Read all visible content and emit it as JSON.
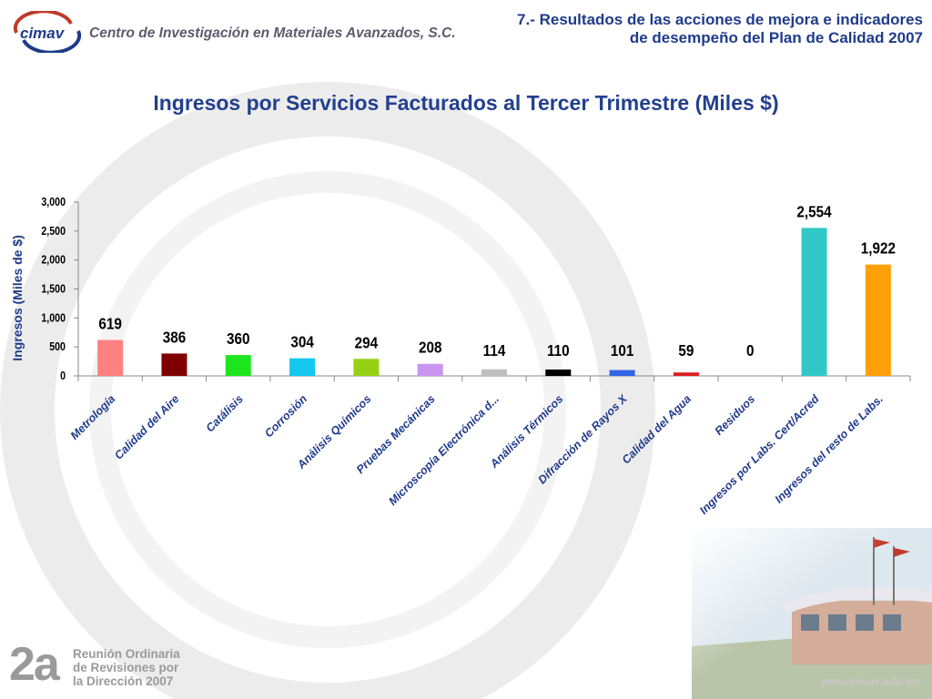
{
  "header": {
    "org_logo": "cimav",
    "org_name": "Centro de Investigación en Materiales Avanzados, S.C.",
    "section_line1": "7.- Resultados de las acciones de mejora e indicadores",
    "section_line2": "de desempeño del Plan de Calidad 2007"
  },
  "chart_data": {
    "type": "bar",
    "title": "Ingresos por Servicios Facturados al Tercer Trimestre (Miles $)",
    "ylabel": "Ingresos (Miles de $)",
    "xlabel": "",
    "ylim": [
      0,
      3000
    ],
    "yticks": [
      "0",
      "500",
      "1,000",
      "1,500",
      "2,000",
      "2,500",
      "3,000"
    ],
    "grid": false,
    "categories": [
      "Metrología",
      "Calidad del Aire",
      "Catálisis",
      "Corrosión",
      "Análisis Químicos",
      "Pruebas Mecánicas",
      "Microscopía Electrónica d...",
      "Análisis Térmicos",
      "Difracción de Rayos X",
      "Calidad del Agua",
      "Residuos",
      "Ingresos por Labs. Cert/Acred",
      "Ingresos del resto de Labs."
    ],
    "values": [
      619,
      386,
      360,
      304,
      294,
      208,
      114,
      110,
      101,
      59,
      0,
      2554,
      1922
    ],
    "value_labels": [
      "619",
      "386",
      "360",
      "304",
      "294",
      "208",
      "114",
      "110",
      "101",
      "59",
      "0",
      "2,554",
      "1,922"
    ],
    "colors": [
      "#ff8080",
      "#800000",
      "#1ee61e",
      "#14c8f0",
      "#96d214",
      "#c896f0",
      "#c0c0c0",
      "#000000",
      "#3264e6",
      "#dc1e1e",
      "#3c3c3c",
      "#32c8c8",
      "#ffa00a"
    ]
  },
  "footer": {
    "meeting_number": "2a",
    "meeting_line1": "Reunión Ordinaria",
    "meeting_line2": "de Revisiones por",
    "meeting_line3": "la Dirección 2007",
    "url": "www.cimav.edu.mx"
  }
}
